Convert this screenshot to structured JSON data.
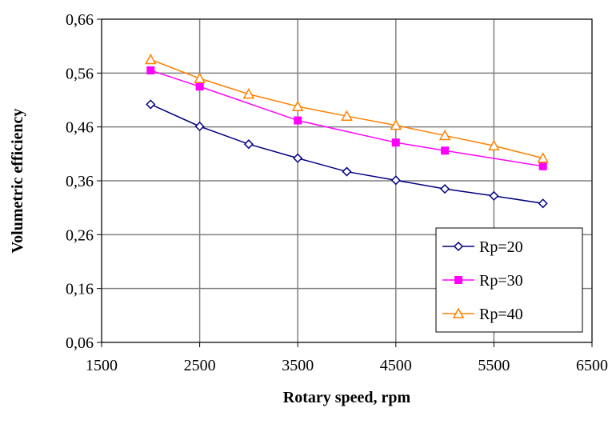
{
  "chart_data": {
    "type": "line",
    "title": "",
    "xlabel": "Rotary speed, rpm",
    "ylabel": "Volumetric efficiency",
    "xlim": [
      1500,
      6500
    ],
    "ylim": [
      0.06,
      0.66
    ],
    "xticks": [
      1500,
      2500,
      3500,
      4500,
      5500,
      6500
    ],
    "yticks": [
      0.06,
      0.16,
      0.26,
      0.36,
      0.46,
      0.56,
      0.66
    ],
    "ytick_labels": [
      "0,06",
      "0,16",
      "0,26",
      "0,36",
      "0,46",
      "0,56",
      "0,66"
    ],
    "xtick_labels": [
      "1500",
      "2500",
      "3500",
      "4500",
      "5500",
      "6500"
    ],
    "grid": "both",
    "legend_position": "bottom-right",
    "series": [
      {
        "name": "Rp=20",
        "color": "#000080",
        "marker": "diamond-open",
        "x": [
          2000,
          2500,
          3000,
          3500,
          4000,
          4500,
          5000,
          5500,
          6000
        ],
        "y": [
          0.502,
          0.461,
          0.428,
          0.402,
          0.377,
          0.361,
          0.345,
          0.332,
          0.318
        ]
      },
      {
        "name": "Rp=30",
        "color": "#ff00ff",
        "marker": "square-filled",
        "x": [
          2000,
          2500,
          3500,
          4500,
          5000,
          6000
        ],
        "y": [
          0.565,
          0.535,
          0.472,
          0.431,
          0.416,
          0.387
        ]
      },
      {
        "name": "Rp=40",
        "color": "#ff8000",
        "marker": "triangle-open",
        "x": [
          2000,
          2500,
          3000,
          3500,
          4000,
          4500,
          5000,
          5500,
          6000
        ],
        "y": [
          0.585,
          0.55,
          0.521,
          0.498,
          0.48,
          0.463,
          0.444,
          0.425,
          0.402
        ]
      }
    ]
  }
}
